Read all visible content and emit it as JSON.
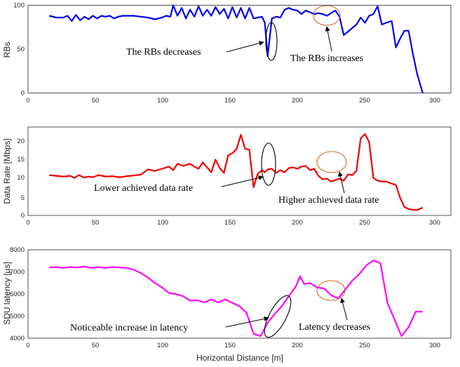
{
  "chart_data": [
    {
      "type": "line",
      "xlabel": "",
      "ylabel": "RBs",
      "xlim": [
        0,
        300
      ],
      "ylim": [
        0,
        100
      ],
      "xticks": [
        "0",
        "50",
        "100",
        "150",
        "200",
        "250",
        "300"
      ],
      "yticks": [
        "0",
        "50",
        "100"
      ],
      "grid": false,
      "series": [
        {
          "color": "#0000ee",
          "x": [
            15,
            20,
            25,
            28,
            31,
            34,
            37,
            40,
            43,
            46,
            49,
            52,
            55,
            58,
            61,
            64,
            67,
            70,
            75,
            80,
            85,
            90,
            95,
            98,
            101,
            103,
            106,
            109,
            112,
            115,
            118,
            121,
            124,
            127,
            130,
            133,
            136,
            139,
            142,
            145,
            148,
            151,
            154,
            157,
            160,
            163,
            166,
            168,
            170,
            173,
            176,
            179,
            182,
            185,
            188,
            191,
            194,
            197,
            200,
            203,
            206,
            209,
            212,
            215,
            218,
            221,
            224,
            227,
            230,
            233,
            236,
            239,
            242,
            245,
            248,
            251,
            254,
            258,
            261,
            264,
            267,
            270,
            273,
            276,
            280
          ],
          "y": [
            88,
            86,
            86,
            88,
            82,
            89,
            83,
            87,
            84,
            88,
            85,
            88,
            87,
            88,
            85,
            87,
            88,
            88,
            88,
            87,
            86,
            84,
            86,
            88,
            87,
            100,
            88,
            97,
            85,
            95,
            87,
            99,
            88,
            95,
            88,
            98,
            90,
            96,
            85,
            98,
            86,
            97,
            85,
            97,
            85,
            86,
            87,
            80,
            42,
            85,
            87,
            86,
            95,
            97,
            95,
            94,
            90,
            94,
            92,
            90,
            91,
            90,
            88,
            91,
            94,
            87,
            66,
            70,
            74,
            78,
            86,
            80,
            88,
            90,
            99,
            78,
            80,
            82,
            52,
            62,
            71,
            71,
            45,
            22,
            0
          ]
        }
      ],
      "annotations": [
        "The RBs decreases",
        "The RBs increases"
      ]
    },
    {
      "type": "line",
      "xlabel": "",
      "ylabel": "Data Rate [Mbps]",
      "xlim": [
        0,
        300
      ],
      "ylim": [
        0,
        25
      ],
      "xticks": [
        "0",
        "50",
        "100",
        "150",
        "200",
        "250",
        "300"
      ],
      "yticks": [
        "0",
        "5",
        "10",
        "15",
        "20"
      ],
      "grid": false,
      "series": [
        {
          "color": "#ee0000",
          "x": [
            15,
            20,
            25,
            30,
            33,
            36,
            40,
            43,
            46,
            50,
            55,
            60,
            65,
            70,
            75,
            80,
            85,
            90,
            95,
            100,
            103,
            106,
            110,
            115,
            118,
            121,
            124,
            127,
            130,
            133,
            136,
            139,
            142,
            145,
            148,
            151,
            154,
            157,
            160,
            163,
            166,
            168,
            170,
            173,
            176,
            179,
            182,
            185,
            188,
            191,
            194,
            197,
            200,
            203,
            206,
            209,
            212,
            215,
            218,
            221,
            224,
            227,
            230,
            233,
            236,
            239,
            242,
            245,
            248,
            251,
            254,
            258,
            261,
            264,
            267,
            270,
            273,
            276,
            280
          ],
          "y": [
            11.4,
            11.2,
            11.0,
            11.2,
            10.6,
            11.4,
            10.7,
            11.0,
            10.8,
            11.4,
            11.0,
            11.1,
            10.8,
            11.1,
            11.3,
            11.5,
            13.0,
            12.6,
            13.2,
            13.8,
            12.8,
            14.6,
            14.0,
            14.6,
            13.8,
            13.2,
            15.0,
            13.6,
            12.2,
            15.8,
            13.4,
            12.0,
            17.0,
            17.6,
            18.8,
            22.8,
            18.8,
            18.6,
            8.0,
            11.8,
            12.8,
            12.2,
            13.0,
            13.2,
            12.0,
            12.8,
            12.2,
            13.4,
            13.6,
            13.2,
            13.8,
            14.0,
            12.8,
            13.2,
            11.2,
            10.2,
            10.4,
            9.6,
            10.0,
            10.4,
            9.8,
            11.6,
            11.4,
            12.6,
            21.8,
            23.0,
            20.8,
            10.6,
            9.8,
            9.6,
            9.6,
            9.0,
            8.6,
            5.0,
            2.4,
            1.8,
            1.6,
            1.5,
            2.2
          ]
        }
      ],
      "annotations": [
        "Lower achieved data rate",
        "Higher achieved data rate"
      ]
    },
    {
      "type": "line",
      "xlabel": "Horizontal Distance [m]",
      "ylabel": "SDU latency [µs]",
      "xlim": [
        0,
        300
      ],
      "ylim": [
        4000,
        8000
      ],
      "xticks": [
        "0",
        "50",
        "100",
        "150",
        "200",
        "250",
        "300"
      ],
      "yticks": [
        "4000",
        "5000",
        "6000",
        "7000",
        "8000"
      ],
      "grid": false,
      "series": [
        {
          "color": "#ff00ff",
          "x": [
            15,
            20,
            25,
            30,
            35,
            40,
            45,
            50,
            55,
            60,
            65,
            70,
            75,
            80,
            85,
            90,
            95,
            100,
            105,
            110,
            115,
            120,
            125,
            130,
            135,
            140,
            145,
            150,
            155,
            160,
            165,
            170,
            175,
            180,
            185,
            190,
            193,
            196,
            200,
            205,
            210,
            215,
            220,
            225,
            230,
            235,
            240,
            245,
            250,
            255,
            260,
            265,
            270,
            275,
            280
          ],
          "y": [
            7200,
            7220,
            7180,
            7220,
            7200,
            7240,
            7180,
            7220,
            7180,
            7220,
            7200,
            7180,
            7100,
            6950,
            6750,
            6500,
            6300,
            6050,
            6000,
            5900,
            5700,
            5720,
            5620,
            5760,
            5620,
            5760,
            5600,
            5450,
            5150,
            4200,
            4100,
            4700,
            5100,
            5450,
            5900,
            6350,
            6800,
            6450,
            6500,
            6300,
            6250,
            5950,
            5800,
            6200,
            6600,
            6900,
            7300,
            7520,
            7400,
            5600,
            4850,
            4100,
            4500,
            5200,
            5200
          ]
        }
      ],
      "annotations": [
        "Noticeable increase in latency",
        "Latency decreases"
      ]
    }
  ]
}
